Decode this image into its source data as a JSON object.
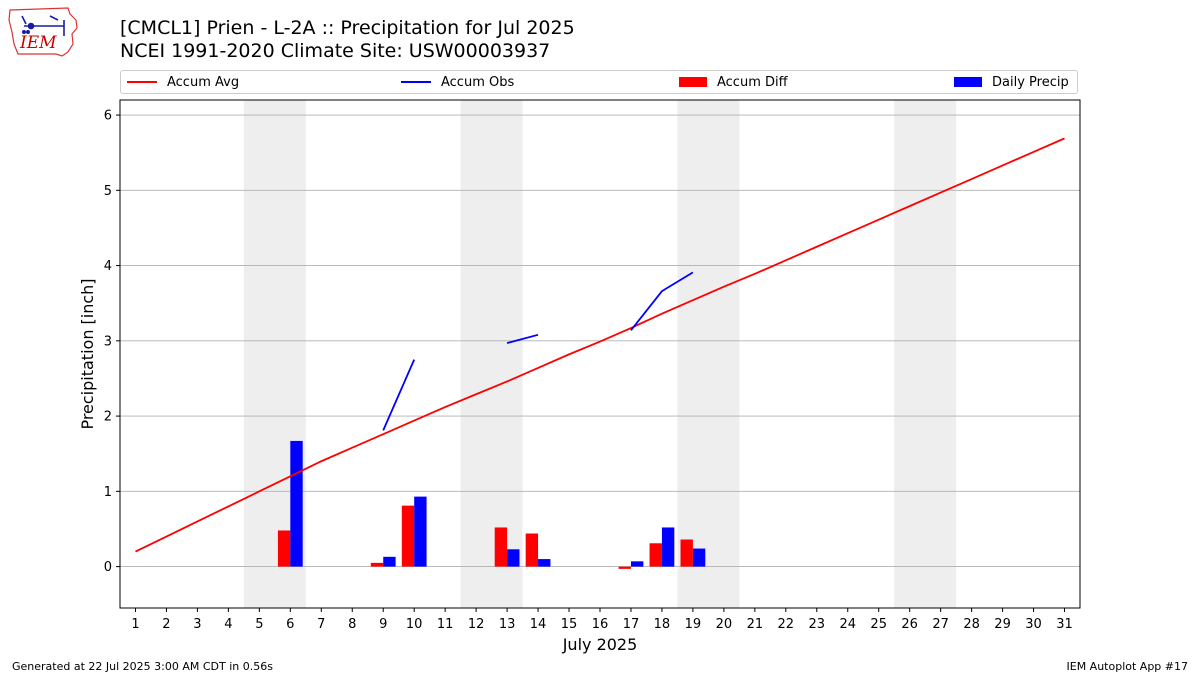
{
  "logo": {
    "text": "IEM",
    "icon": "iowa-state-outline-with-weather-station"
  },
  "title": {
    "line1": "[CMCL1] Prien - L-2A :: Precipitation for Jul 2025",
    "line2": "NCEI 1991-2020 Climate Site: USW00003937"
  },
  "footer": {
    "left": "Generated at 22 Jul 2025 3:00 AM CDT in 0.56s",
    "right": "IEM Autoplot App #17"
  },
  "colors": {
    "accum_avg": "#ff0000",
    "accum_obs": "#0000ff",
    "accum_diff": "#ff0000",
    "daily_precip": "#0000ff",
    "weekend_shade": "#eeeeee",
    "grid": "#b0b0b0"
  },
  "chart_data": {
    "type": "bar",
    "xlabel": "July 2025",
    "ylabel": "Precipitation [inch]",
    "xlim": [
      0.5,
      31.5
    ],
    "ylim": [
      -0.55,
      6.2
    ],
    "yticks": [
      0,
      1,
      2,
      3,
      4,
      5,
      6
    ],
    "xticks": [
      1,
      2,
      3,
      4,
      5,
      6,
      7,
      8,
      9,
      10,
      11,
      12,
      13,
      14,
      15,
      16,
      17,
      18,
      19,
      20,
      21,
      22,
      23,
      24,
      25,
      26,
      27,
      28,
      29,
      30,
      31
    ],
    "grid": true,
    "legend_placement": "top",
    "weekend_days": [
      [
        5,
        6
      ],
      [
        12,
        13
      ],
      [
        19,
        20
      ],
      [
        26,
        27
      ]
    ],
    "series": [
      {
        "name": "Accum Avg",
        "type": "line",
        "x": [
          1,
          2,
          3,
          4,
          5,
          6,
          7,
          8,
          9,
          10,
          11,
          12,
          13,
          14,
          15,
          16,
          17,
          18,
          19,
          20,
          21,
          22,
          23,
          24,
          25,
          26,
          27,
          28,
          29,
          30,
          31
        ],
        "values": [
          0.2,
          0.4,
          0.6,
          0.8,
          1.0,
          1.2,
          1.4,
          1.58,
          1.76,
          1.94,
          2.12,
          2.29,
          2.46,
          2.64,
          2.82,
          2.99,
          3.17,
          3.36,
          3.54,
          3.72,
          3.89,
          4.07,
          4.25,
          4.43,
          4.61,
          4.79,
          4.97,
          5.15,
          5.33,
          5.51,
          5.69
        ]
      },
      {
        "name": "Accum Obs",
        "type": "line",
        "segments": [
          {
            "x": [
              9,
              10
            ],
            "values": [
              1.81,
              2.75
            ]
          },
          {
            "x": [
              13,
              14
            ],
            "values": [
              2.97,
              3.08
            ]
          },
          {
            "x": [
              17,
              18,
              19
            ],
            "values": [
              3.14,
              3.66,
              3.91
            ]
          }
        ]
      },
      {
        "name": "Accum Diff",
        "type": "bar",
        "x": [
          6,
          9,
          10,
          13,
          14,
          17,
          18,
          19
        ],
        "values": [
          0.48,
          0.05,
          0.81,
          0.52,
          0.44,
          -0.03,
          0.31,
          0.36
        ]
      },
      {
        "name": "Daily Precip",
        "type": "bar",
        "x": [
          6,
          9,
          10,
          13,
          14,
          17,
          18,
          19
        ],
        "values": [
          1.67,
          0.13,
          0.93,
          0.23,
          0.1,
          0.07,
          0.52,
          0.24
        ]
      }
    ]
  }
}
